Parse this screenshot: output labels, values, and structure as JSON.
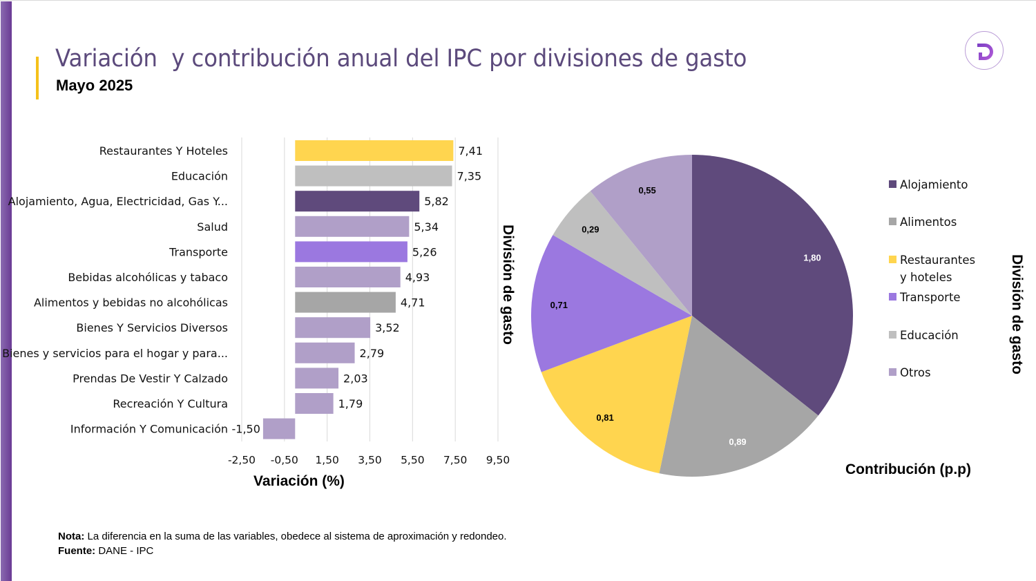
{
  "header": {
    "title": "Variación  y contribución anual del IPC por divisiones de gasto",
    "subtitle": "Mayo 2025",
    "logo_icon": "dane-d-logo-icon"
  },
  "colors": {
    "title": "#5c4a7c",
    "accent_yellow": "#f5c11a",
    "side_bar": "#6a3a94"
  },
  "chart_data": [
    {
      "type": "bar",
      "orientation": "horizontal",
      "title": "",
      "xlabel": "Variación (%)",
      "ylabel": "División de gasto",
      "xlim": [
        -2.5,
        9.5
      ],
      "x_ticks": [
        -2.5,
        -0.5,
        1.5,
        3.5,
        5.5,
        7.5,
        9.5
      ],
      "x_tick_labels": [
        "-2,50",
        "-0,50",
        "1,50",
        "3,50",
        "5,50",
        "7,50",
        "9,50"
      ],
      "grid": true,
      "categories": [
        "Restaurantes Y Hoteles",
        "Educación",
        "Alojamiento, Agua, Electricidad, Gas Y...",
        "Salud",
        "Transporte",
        "Bebidas alcohólicas y tabaco",
        "Alimentos y bebidas no alcohólicas",
        "Bienes Y Servicios Diversos",
        "Bienes y servicios para el hogar y para...",
        "Prendas De Vestir Y Calzado",
        "Recreación Y Cultura",
        "Información Y Comunicación"
      ],
      "values": [
        7.41,
        7.35,
        5.82,
        5.34,
        5.26,
        4.93,
        4.71,
        3.52,
        2.79,
        2.03,
        1.79,
        -1.5
      ],
      "value_labels": [
        "7,41",
        "7,35",
        "5,82",
        "5,34",
        "5,26",
        "4,93",
        "4,71",
        "3,52",
        "2,79",
        "2,03",
        "1,79",
        "-1,50"
      ],
      "bar_colors": [
        "#ffd54f",
        "#bfbfbf",
        "#5f4a7c",
        "#b09fc8",
        "#9b78e0",
        "#b09fc8",
        "#a6a6a6",
        "#b09fc8",
        "#b09fc8",
        "#b09fc8",
        "#b09fc8",
        "#b09fc8"
      ]
    },
    {
      "type": "pie",
      "title": "",
      "xlabel": "Contribución (p.p)",
      "legend_title": "División de gasto",
      "legend_position": "right",
      "start_angle": "12 o'clock",
      "direction": "clockwise",
      "slices": [
        {
          "name": "Alojamiento",
          "value": 1.8,
          "label": "1,80",
          "color": "#5f4a7c",
          "label_color": "#ffffff"
        },
        {
          "name": "Alimentos",
          "value": 0.89,
          "label": "0,89",
          "color": "#a6a6a6",
          "label_color": "#ffffff"
        },
        {
          "name": "Restaurantes y hoteles",
          "value": 0.81,
          "label": "0,81",
          "color": "#ffd54f",
          "label_color": "#000000"
        },
        {
          "name": "Transporte",
          "value": 0.71,
          "label": "0,71",
          "color": "#9b78e0",
          "label_color": "#000000"
        },
        {
          "name": "Educación",
          "value": 0.29,
          "label": "0,29",
          "color": "#bfbfbf",
          "label_color": "#000000"
        },
        {
          "name": "Otros",
          "value": 0.55,
          "label": "0,55",
          "color": "#b09fc8",
          "label_color": "#000000"
        }
      ],
      "legend": [
        {
          "lines": [
            "Alojamiento"
          ],
          "color": "#5f4a7c"
        },
        {
          "lines": [
            "Alimentos"
          ],
          "color": "#a6a6a6"
        },
        {
          "lines": [
            "Restaurantes",
            "y hoteles"
          ],
          "color": "#ffd54f"
        },
        {
          "lines": [
            "Transporte"
          ],
          "color": "#9b78e0"
        },
        {
          "lines": [
            "Educación"
          ],
          "color": "#bfbfbf"
        },
        {
          "lines": [
            "Otros"
          ],
          "color": "#b09fc8"
        }
      ]
    }
  ],
  "footer": {
    "note_label": "Nota:",
    "note_text": " La diferencia en la suma de las variables, obedece al sistema de aproximación y redondeo.",
    "source_label": "Fuente:",
    "source_text": " DANE - IPC"
  }
}
